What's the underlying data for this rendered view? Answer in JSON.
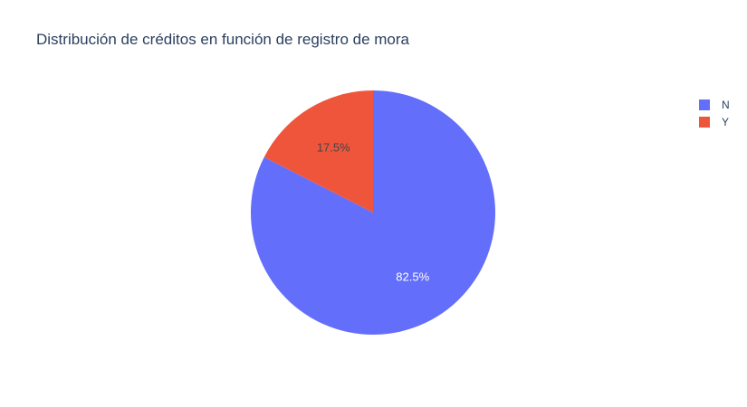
{
  "chart_data": {
    "type": "pie",
    "title": "Distribución de créditos en función de registro de mora",
    "labels": [
      "N",
      "Y"
    ],
    "values": [
      82.5,
      17.5
    ],
    "text_labels": [
      "82.5%",
      "17.5%"
    ],
    "colors": [
      "#636efa",
      "#ef553b"
    ],
    "legend_position": "top-right",
    "start": "12 o'clock",
    "direction": "counterclockwise"
  },
  "legend": {
    "items": [
      {
        "label": "N",
        "color": "#636efa"
      },
      {
        "label": "Y",
        "color": "#ef553b"
      }
    ]
  }
}
